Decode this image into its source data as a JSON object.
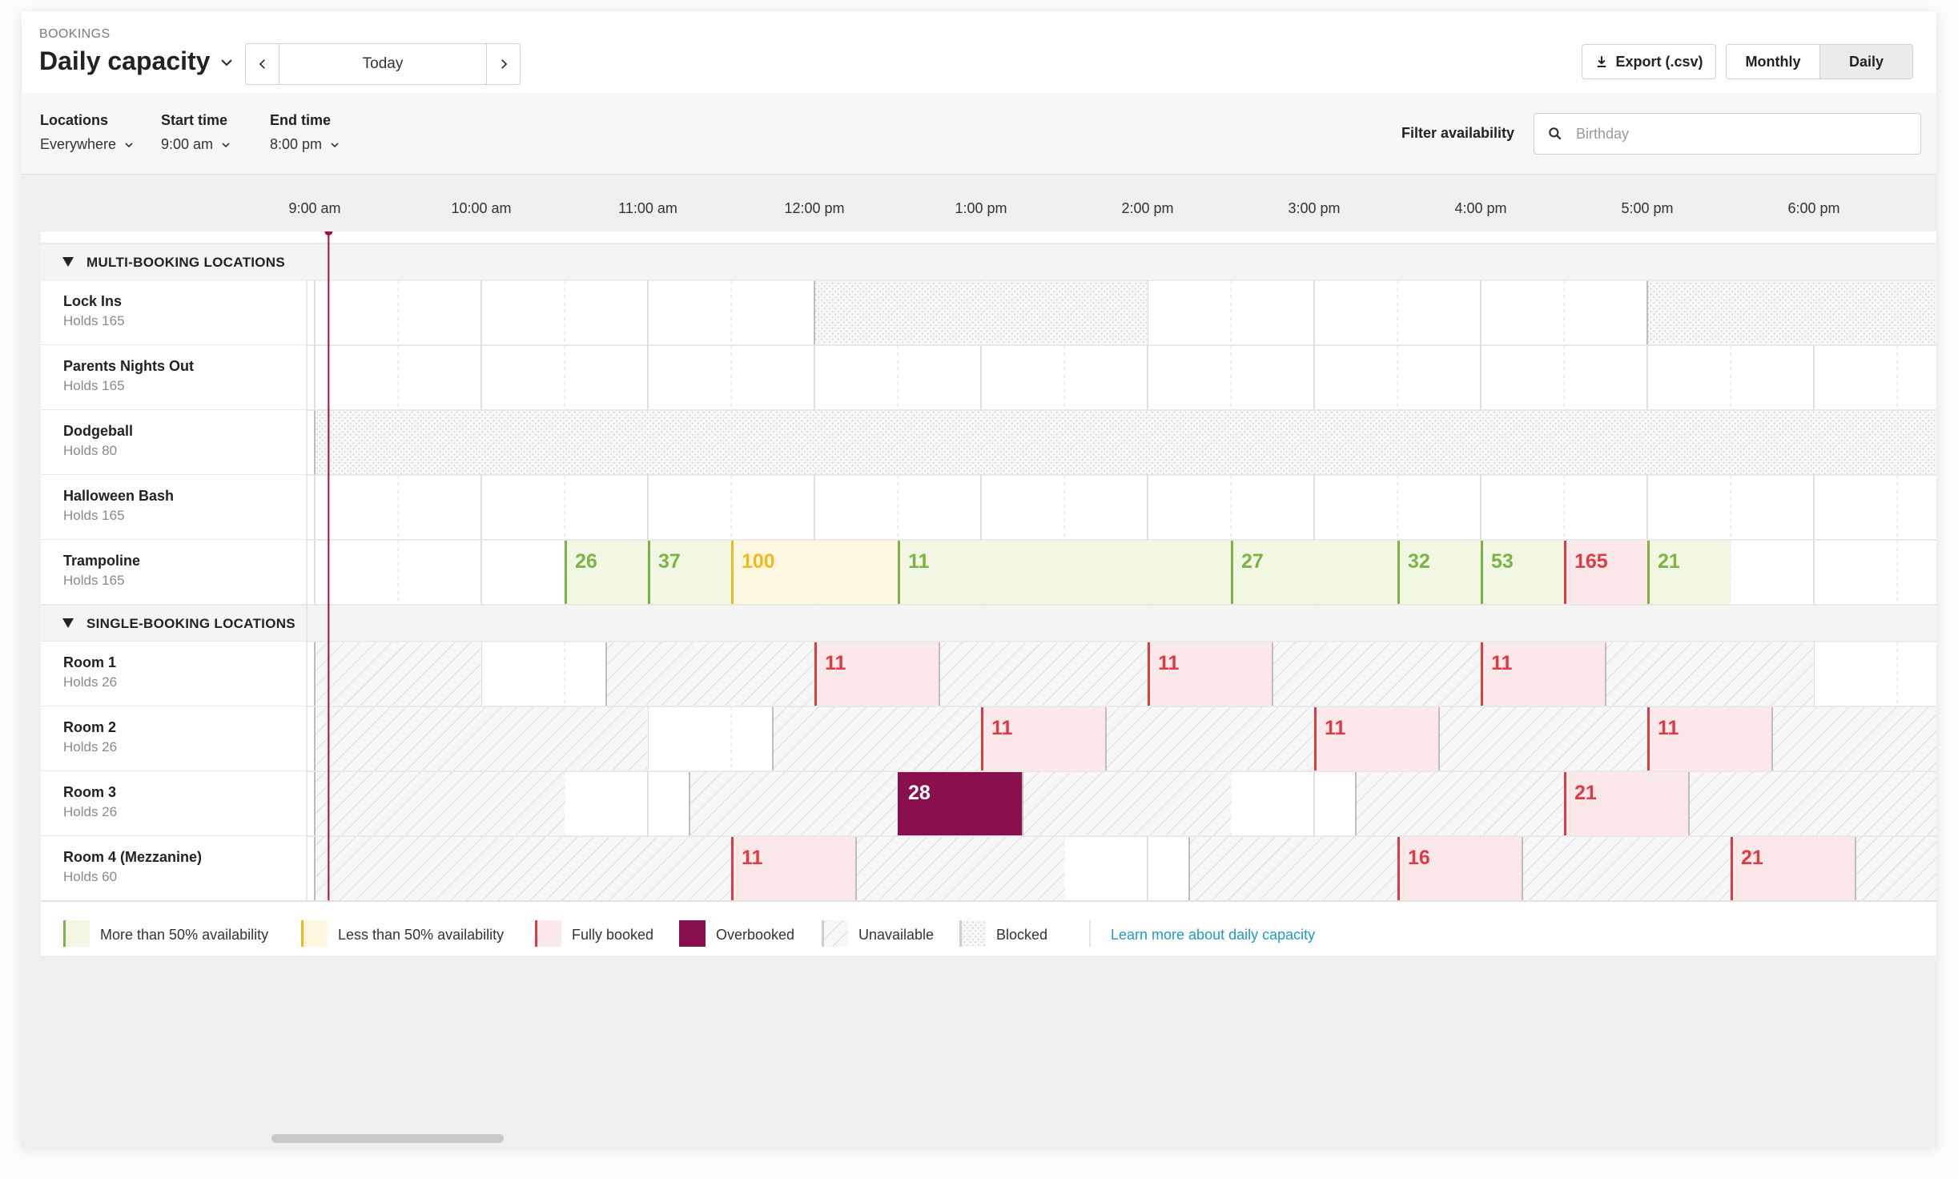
{
  "header": {
    "breadcrumb": "BOOKINGS",
    "title": "Daily capacity",
    "today_label": "Today",
    "export_label": "Export (.csv)",
    "view_modes": [
      "Monthly",
      "Daily"
    ],
    "selected_view": "Daily"
  },
  "filters": {
    "locations_label": "Locations",
    "locations_value": "Everywhere",
    "start_label": "Start time",
    "start_value": "9:00 am",
    "end_label": "End time",
    "end_value": "8:00 pm",
    "availability_label": "Filter availability",
    "availability_placeholder": "Birthday"
  },
  "timeline": {
    "hours": [
      "9:00 am",
      "10:00 am",
      "11:00 am",
      "12:00 pm",
      "1:00 pm",
      "2:00 pm",
      "3:00 pm",
      "4:00 pm",
      "5:00 pm",
      "6:00 pm"
    ],
    "current_time": "9:05 am"
  },
  "groups": [
    {
      "name": "MULTI-BOOKING LOCATIONS",
      "rows": [
        {
          "name": "Lock Ins",
          "capacity": "Holds 165",
          "blocks": [
            {
              "start": 12.0,
              "end": 14.0,
              "state": "blocked"
            },
            {
              "start": 17.0,
              "end": 19.0,
              "state": "blocked"
            }
          ]
        },
        {
          "name": "Parents Nights Out",
          "capacity": "Holds 165",
          "blocks": []
        },
        {
          "name": "Dodgeball",
          "capacity": "Holds 80",
          "blocks": [
            {
              "start": 9.0,
              "end": 19.0,
              "state": "blocked"
            }
          ]
        },
        {
          "name": "Halloween Bash",
          "capacity": "Holds 165",
          "blocks": []
        },
        {
          "name": "Trampoline",
          "capacity": "Holds 165",
          "blocks": [
            {
              "start": 10.5,
              "end": 11.0,
              "state": "more",
              "label": "26"
            },
            {
              "start": 11.0,
              "end": 11.5,
              "state": "more",
              "label": "37"
            },
            {
              "start": 11.5,
              "end": 12.5,
              "state": "less",
              "label": "100"
            },
            {
              "start": 12.5,
              "end": 14.5,
              "state": "more",
              "label": "11"
            },
            {
              "start": 14.5,
              "end": 15.5,
              "state": "more",
              "label": "27"
            },
            {
              "start": 15.5,
              "end": 16.0,
              "state": "more",
              "label": "32"
            },
            {
              "start": 16.0,
              "end": 16.5,
              "state": "more",
              "label": "53"
            },
            {
              "start": 16.5,
              "end": 17.0,
              "state": "full",
              "label": "165"
            },
            {
              "start": 17.0,
              "end": 17.5,
              "state": "more",
              "label": "21"
            }
          ]
        }
      ]
    },
    {
      "name": "SINGLE-BOOKING LOCATIONS",
      "rows": [
        {
          "name": "Room 1",
          "capacity": "Holds 26",
          "blocks": [
            {
              "start": 9.0,
              "end": 10.0,
              "state": "unavailable"
            },
            {
              "start": 10.75,
              "end": 12.0,
              "state": "unavailable"
            },
            {
              "start": 12.0,
              "end": 12.75,
              "state": "full",
              "label": "11"
            },
            {
              "start": 12.75,
              "end": 14.0,
              "state": "unavailable"
            },
            {
              "start": 14.0,
              "end": 14.75,
              "state": "full",
              "label": "11"
            },
            {
              "start": 14.75,
              "end": 16.0,
              "state": "unavailable"
            },
            {
              "start": 16.0,
              "end": 16.75,
              "state": "full",
              "label": "11"
            },
            {
              "start": 16.75,
              "end": 18.0,
              "state": "unavailable"
            },
            {
              "start": 18.75,
              "end": 19.0,
              "state": "unavailable"
            }
          ]
        },
        {
          "name": "Room 2",
          "capacity": "Holds 26",
          "blocks": [
            {
              "start": 9.0,
              "end": 11.0,
              "state": "unavailable"
            },
            {
              "start": 11.75,
              "end": 13.0,
              "state": "unavailable"
            },
            {
              "start": 13.0,
              "end": 13.75,
              "state": "full",
              "label": "11"
            },
            {
              "start": 13.75,
              "end": 15.0,
              "state": "unavailable"
            },
            {
              "start": 15.0,
              "end": 15.75,
              "state": "full",
              "label": "11"
            },
            {
              "start": 15.75,
              "end": 17.0,
              "state": "unavailable"
            },
            {
              "start": 17.0,
              "end": 17.75,
              "state": "full",
              "label": "11"
            },
            {
              "start": 17.75,
              "end": 19.0,
              "state": "unavailable"
            }
          ]
        },
        {
          "name": "Room 3",
          "capacity": "Holds 26",
          "blocks": [
            {
              "start": 9.0,
              "end": 10.5,
              "state": "unavailable"
            },
            {
              "start": 11.25,
              "end": 12.5,
              "state": "unavailable"
            },
            {
              "start": 12.5,
              "end": 13.25,
              "state": "overbooked",
              "label": "28"
            },
            {
              "start": 13.25,
              "end": 14.5,
              "state": "unavailable"
            },
            {
              "start": 15.25,
              "end": 16.5,
              "state": "unavailable"
            },
            {
              "start": 16.5,
              "end": 17.25,
              "state": "full",
              "label": "21"
            },
            {
              "start": 17.25,
              "end": 19.0,
              "state": "unavailable"
            }
          ]
        },
        {
          "name": "Room 4 (Mezzanine)",
          "capacity": "Holds 60",
          "blocks": [
            {
              "start": 9.0,
              "end": 11.5,
              "state": "unavailable"
            },
            {
              "start": 11.5,
              "end": 12.25,
              "state": "full",
              "label": "11"
            },
            {
              "start": 12.25,
              "end": 13.5,
              "state": "unavailable"
            },
            {
              "start": 14.25,
              "end": 15.5,
              "state": "unavailable"
            },
            {
              "start": 15.5,
              "end": 16.25,
              "state": "full",
              "label": "16"
            },
            {
              "start": 16.25,
              "end": 17.5,
              "state": "unavailable"
            },
            {
              "start": 17.5,
              "end": 18.25,
              "state": "full",
              "label": "21"
            },
            {
              "start": 18.25,
              "end": 19.0,
              "state": "unavailable"
            }
          ]
        }
      ]
    }
  ],
  "legend": {
    "items": [
      {
        "state": "more",
        "label": "More than 50% availability"
      },
      {
        "state": "less",
        "label": "Less than 50% availability"
      },
      {
        "state": "full",
        "label": "Fully booked"
      },
      {
        "state": "overbooked",
        "label": "Overbooked"
      },
      {
        "state": "unavailable",
        "label": "Unavailable"
      },
      {
        "state": "blocked",
        "label": "Blocked"
      }
    ],
    "link_label": "Learn more about daily capacity"
  },
  "colors": {
    "more_fill": "#f2f7e3",
    "more_accent": "#7cb342",
    "less_fill": "#fdf7df",
    "less_accent": "#f2b91f",
    "full_fill": "#fbe9ea",
    "full_accent": "#de3b46",
    "overbooked_fill": "#8a0f4f",
    "link": "#1f9bc4",
    "now_line": "#a3123e"
  }
}
